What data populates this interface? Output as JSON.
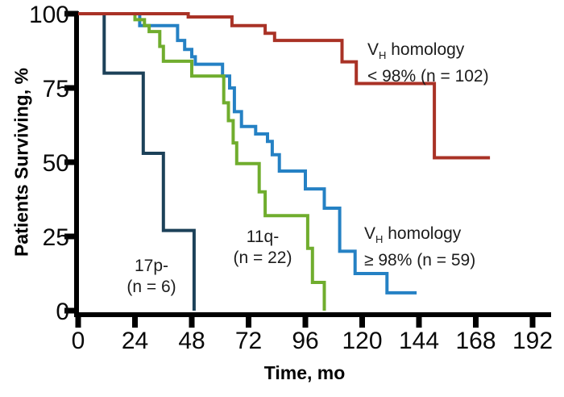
{
  "chart_data": {
    "type": "line",
    "subtype": "kaplan-meier-step-survival",
    "title": "",
    "xlabel": "Time, mo",
    "ylabel": "Patients Surviving, %",
    "xlim": [
      0,
      192
    ],
    "ylim": [
      0,
      100
    ],
    "x_ticks": [
      0,
      24,
      48,
      72,
      96,
      120,
      144,
      168,
      192
    ],
    "y_ticks": [
      100,
      75,
      50,
      25,
      0
    ],
    "grid": false,
    "legend_position": "annotations-on-plot",
    "axis_color": "#000000",
    "series": [
      {
        "key": "vh_ge98",
        "name": "VH homology ≥ 98% (n = 59)",
        "color": "#2581C4",
        "start_pct": 100,
        "steps_month_pct": [
          [
            26,
            96
          ],
          [
            42,
            91
          ],
          [
            45,
            88
          ],
          [
            48,
            85.5
          ],
          [
            49.5,
            83
          ],
          [
            61,
            79
          ],
          [
            64,
            75
          ],
          [
            66,
            67
          ],
          [
            69,
            62
          ],
          [
            75,
            59.5
          ],
          [
            80,
            57
          ],
          [
            82,
            52.5
          ],
          [
            85,
            47
          ],
          [
            96,
            41
          ],
          [
            104,
            34.5
          ],
          [
            110.5,
            20
          ],
          [
            117,
            12.5
          ],
          [
            130.5,
            6
          ]
        ],
        "end_month": 143
      },
      {
        "key": "del11q",
        "name": "11q- (n = 22)",
        "color": "#70AD2E",
        "start_pct": 100,
        "steps_month_pct": [
          [
            24,
            98
          ],
          [
            28,
            96
          ],
          [
            30,
            94
          ],
          [
            34.5,
            89
          ],
          [
            36,
            84
          ],
          [
            48,
            79
          ],
          [
            61.5,
            70
          ],
          [
            63.5,
            64
          ],
          [
            65.5,
            56.5
          ],
          [
            67,
            49.5
          ],
          [
            76.5,
            40
          ],
          [
            79,
            32
          ],
          [
            97,
            21
          ],
          [
            99,
            9.5
          ],
          [
            104,
            0
          ]
        ],
        "end_month": 104
      },
      {
        "key": "del17p",
        "name": "17p- (n = 6)",
        "color": "#1C4159",
        "start_pct": 100,
        "steps_month_pct": [
          [
            11,
            80
          ],
          [
            27.5,
            53
          ],
          [
            36,
            27
          ],
          [
            49,
            0
          ]
        ],
        "end_month": 49
      },
      {
        "key": "vh_lt98",
        "name": "VH homology < 98% (n = 102)",
        "color": "#A93226",
        "start_pct": 100,
        "steps_month_pct": [
          [
            46.5,
            98.9
          ],
          [
            65,
            96
          ],
          [
            79,
            93.4
          ],
          [
            83,
            91
          ],
          [
            111.5,
            83.8
          ],
          [
            117.5,
            76.5
          ],
          [
            150.5,
            51.5
          ]
        ],
        "end_month": 174
      }
    ]
  },
  "annotations": {
    "vh_lt98": {
      "v": "V",
      "sub": "H",
      "homology": " homology",
      "line2": "< 98% (n = 102)"
    },
    "vh_ge98": {
      "v": "V",
      "sub": "H",
      "homology": " homology",
      "line2": "≥ 98% (n = 59)"
    },
    "del11q": {
      "line1": "11q-",
      "line2": "(n = 22)"
    },
    "del17p": {
      "line1": "17p-",
      "line2": "(n = 6)"
    }
  }
}
